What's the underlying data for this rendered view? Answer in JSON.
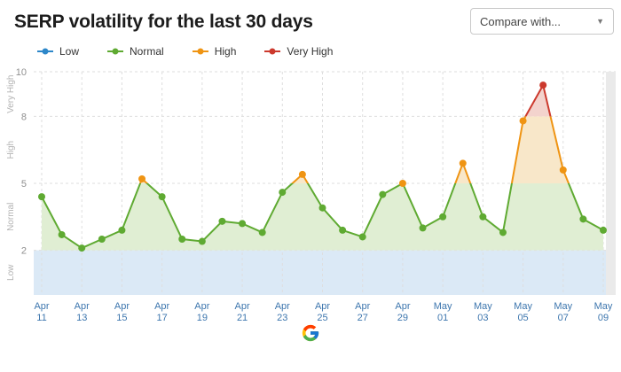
{
  "header": {
    "title": "SERP volatility for the last 30 days",
    "compare_button": "Compare with..."
  },
  "legend": [
    {
      "label": "Low",
      "color": "#2d87c9"
    },
    {
      "label": "Normal",
      "color": "#5faa32"
    },
    {
      "label": "High",
      "color": "#ef9413"
    },
    {
      "label": "Very High",
      "color": "#cc392d"
    }
  ],
  "chart_data": {
    "type": "line",
    "title": "SERP volatility for the last 30 days",
    "ylim": [
      0,
      10
    ],
    "yticks": [
      2,
      5,
      8,
      10
    ],
    "x_tick_every": 2,
    "x": [
      "Apr 11",
      "Apr 12",
      "Apr 13",
      "Apr 14",
      "Apr 15",
      "Apr 16",
      "Apr 17",
      "Apr 18",
      "Apr 19",
      "Apr 20",
      "Apr 21",
      "Apr 22",
      "Apr 23",
      "Apr 24",
      "Apr 25",
      "Apr 26",
      "Apr 27",
      "Apr 28",
      "Apr 29",
      "Apr 30",
      "May 01",
      "May 02",
      "May 03",
      "May 04",
      "May 05",
      "May 06",
      "May 07",
      "May 08",
      "May 09"
    ],
    "values": [
      4.4,
      2.7,
      2.1,
      2.5,
      2.9,
      5.2,
      4.4,
      2.5,
      2.4,
      3.3,
      3.2,
      2.8,
      4.6,
      5.4,
      3.9,
      2.9,
      2.6,
      4.5,
      5.0,
      3.0,
      3.5,
      5.9,
      3.5,
      2.8,
      7.8,
      9.4,
      5.6,
      3.4,
      2.9
    ],
    "bands": [
      {
        "label": "Low",
        "from": 0,
        "to": 2,
        "fill": "#dbe9f6",
        "line": "#2d87c9"
      },
      {
        "label": "Normal",
        "from": 2,
        "to": 5,
        "fill": "#e0eed3",
        "line": "#5faa32"
      },
      {
        "label": "High",
        "from": 5,
        "to": 8,
        "fill": "#f8e7c9",
        "line": "#ef9413"
      },
      {
        "label": "Very High",
        "from": 8,
        "to": 10,
        "fill": "#f3d3cd",
        "line": "#cc392d"
      }
    ],
    "future_zone_color": "#eaeaea",
    "grid_color": "#dedede",
    "x_label_color": "#3d76ae",
    "axis_text_color": "#8f8f8f",
    "band_label_color": "#b3b3b3",
    "source_icon": "google"
  }
}
